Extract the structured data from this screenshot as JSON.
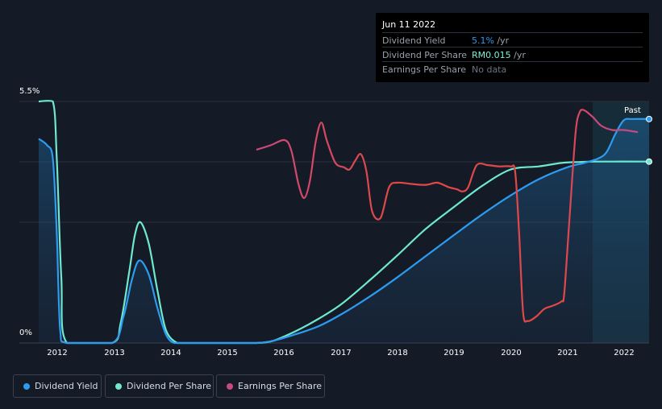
{
  "tooltip": {
    "date": "Jun 11 2022",
    "rows": [
      {
        "label": "Dividend Yield",
        "value": "5.1%",
        "unit": " /yr",
        "color": "#2d9cf0"
      },
      {
        "label": "Dividend Per Share",
        "value": "RM0.015",
        "unit": " /yr",
        "color": "#7ff0d6"
      },
      {
        "label": "Earnings Per Share",
        "value": "No data",
        "unit": "",
        "color": "#6c7280"
      }
    ]
  },
  "past_label": "Past",
  "legend": [
    {
      "label": "Dividend Yield",
      "color": "#2d9cf0"
    },
    {
      "label": "Dividend Per Share",
      "color": "#6ee8cf"
    },
    {
      "label": "Earnings Per Share",
      "color": "#c8497f"
    }
  ],
  "chart_data": {
    "type": "line",
    "title": "",
    "xlabel": "",
    "ylabel": "",
    "y_ticks": [
      "5.5%",
      "0%"
    ],
    "ylim": [
      0,
      5.5
    ],
    "xlim": [
      2011.65,
      2022.45
    ],
    "x_ticks": [
      "2012",
      "2013",
      "2014",
      "2015",
      "2016",
      "2017",
      "2018",
      "2019",
      "2020",
      "2021",
      "2022"
    ],
    "grid": true,
    "series": [
      {
        "name": "Dividend Yield",
        "color": "#2d9cf0",
        "x": [
          2011.65,
          2011.8,
          2011.9,
          2011.97,
          2012.03,
          2012.15,
          2012.95,
          2013.15,
          2013.3,
          2013.43,
          2013.6,
          2013.75,
          2013.9,
          2014.05,
          2014.3,
          2015.0,
          2015.5,
          2015.8,
          2016.2,
          2016.6,
          2017.0,
          2017.5,
          2018.0,
          2018.5,
          2019.0,
          2019.5,
          2020.0,
          2020.5,
          2021.0,
          2021.3,
          2021.55,
          2021.7,
          2021.85,
          2022.0,
          2022.15,
          2022.45
        ],
        "y": [
          4.65,
          4.5,
          4.2,
          2.5,
          0.3,
          0.0,
          0.0,
          0.6,
          1.45,
          1.88,
          1.55,
          0.8,
          0.2,
          0.0,
          0.0,
          0.0,
          0.0,
          0.05,
          0.2,
          0.38,
          0.65,
          1.05,
          1.5,
          1.98,
          2.46,
          2.93,
          3.36,
          3.73,
          4.0,
          4.1,
          4.2,
          4.35,
          4.75,
          5.07,
          5.1,
          5.1
        ]
      },
      {
        "name": "Dividend Per Share",
        "color": "#6ee8cf",
        "x": [
          2011.65,
          2011.9,
          2011.97,
          2012.05,
          2012.15,
          2012.95,
          2013.1,
          2013.25,
          2013.35,
          2013.45,
          2013.6,
          2013.75,
          2013.9,
          2014.1,
          2014.3,
          2015.0,
          2015.5,
          2015.8,
          2016.2,
          2016.6,
          2017.0,
          2017.5,
          2018.0,
          2018.5,
          2019.0,
          2019.5,
          2020.0,
          2020.5,
          2020.9,
          2021.2,
          2021.5,
          2022.45
        ],
        "y": [
          5.5,
          5.5,
          4.2,
          1.5,
          0.0,
          0.0,
          0.45,
          1.6,
          2.45,
          2.75,
          2.25,
          1.2,
          0.3,
          0.0,
          0.0,
          0.0,
          0.0,
          0.05,
          0.27,
          0.55,
          0.88,
          1.42,
          2.0,
          2.6,
          3.1,
          3.58,
          3.95,
          4.02,
          4.1,
          4.12,
          4.13,
          4.13
        ]
      },
      {
        "name": "Earnings Per Share",
        "color_start": "#c8497f",
        "color_end": "#e04848",
        "x": [
          2015.5,
          2015.75,
          2016.0,
          2016.12,
          2016.25,
          2016.35,
          2016.45,
          2016.55,
          2016.65,
          2016.75,
          2016.9,
          2017.05,
          2017.15,
          2017.25,
          2017.35,
          2017.45,
          2017.55,
          2017.7,
          2017.85,
          2018.0,
          2018.25,
          2018.5,
          2018.7,
          2018.9,
          2019.05,
          2019.15,
          2019.25,
          2019.4,
          2019.6,
          2019.8,
          2020.0,
          2020.08,
          2020.15,
          2020.22,
          2020.3,
          2020.45,
          2020.6,
          2020.75,
          2020.9,
          2020.95,
          2021.05,
          2021.15,
          2021.22,
          2021.3,
          2021.45,
          2021.6,
          2021.8,
          2022.0,
          2022.25
        ],
        "y": [
          4.4,
          4.5,
          4.62,
          4.38,
          3.6,
          3.3,
          3.7,
          4.58,
          5.02,
          4.6,
          4.1,
          4.0,
          3.95,
          4.15,
          4.3,
          3.9,
          3.0,
          2.85,
          3.55,
          3.65,
          3.62,
          3.6,
          3.65,
          3.55,
          3.5,
          3.45,
          3.55,
          4.05,
          4.05,
          4.02,
          4.02,
          3.9,
          2.5,
          0.7,
          0.5,
          0.6,
          0.78,
          0.85,
          0.95,
          1.15,
          3.0,
          4.8,
          5.25,
          5.3,
          5.15,
          4.95,
          4.85,
          4.85,
          4.8
        ]
      }
    ]
  }
}
